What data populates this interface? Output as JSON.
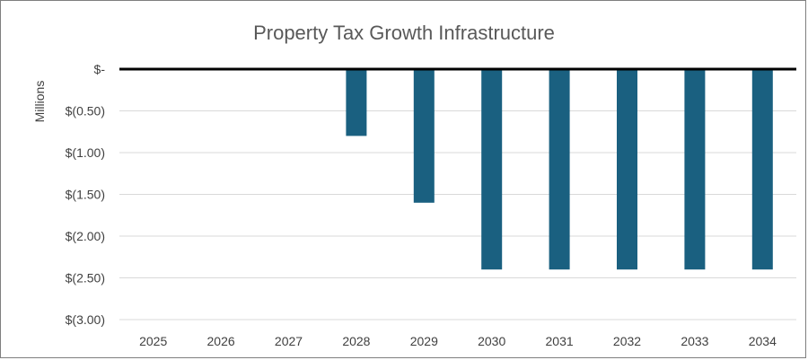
{
  "chart_data": {
    "type": "bar",
    "title": "Property Tax Growth Infrastructure",
    "ylabel": "Millions",
    "xlabel": "",
    "categories": [
      "2025",
      "2026",
      "2027",
      "2028",
      "2029",
      "2030",
      "2031",
      "2032",
      "2033",
      "2034"
    ],
    "values": [
      0,
      0,
      0,
      -0.8,
      -1.6,
      -2.4,
      -2.4,
      -2.4,
      -2.4,
      -2.4
    ],
    "ylim": [
      -3.0,
      0
    ],
    "yticks": [
      0,
      -0.5,
      -1.0,
      -1.5,
      -2.0,
      -2.5,
      -3.0
    ],
    "ytick_labels": [
      "$-",
      "$(0.50)",
      "$(1.00)",
      "$(1.50)",
      "$(2.00)",
      "$(2.50)",
      "$(3.00)"
    ],
    "grid": true,
    "legend": "none",
    "colors": {
      "bar": "#1a6080",
      "grid": "#d9d9d9",
      "zero_line": "#000000"
    }
  }
}
